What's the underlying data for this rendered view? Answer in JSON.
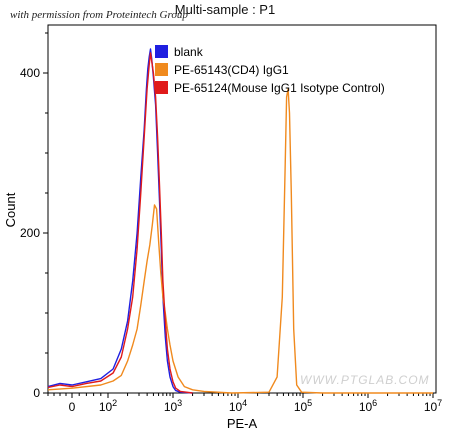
{
  "watermark_top": "with permission from Proteintech Group",
  "watermark_bottom": "WWW.PTGLAB.COM",
  "chart_data": {
    "type": "line",
    "title": "Multi-sample : P1",
    "xlabel": "PE-A",
    "ylabel": "Count",
    "x_scale": "biexponential",
    "xlim": [
      -100,
      10000000
    ],
    "ylim": [
      0,
      460
    ],
    "x_ticks": [
      {
        "value": 0,
        "label": "0"
      },
      {
        "value": 100,
        "label": "10^2"
      },
      {
        "value": 1000,
        "label": "10^3"
      },
      {
        "value": 10000,
        "label": "10^4"
      },
      {
        "value": 100000,
        "label": "10^5"
      },
      {
        "value": 1000000,
        "label": "10^6"
      },
      {
        "value": 10000000,
        "label": "10^7"
      }
    ],
    "y_ticks": [
      0,
      200,
      400
    ],
    "legend": {
      "position": "top-center"
    },
    "series": [
      {
        "name": "blank",
        "color": "#1f1fe0",
        "points": [
          [
            -80,
            8
          ],
          [
            -40,
            12
          ],
          [
            0,
            10
          ],
          [
            40,
            14
          ],
          [
            80,
            18
          ],
          [
            120,
            30
          ],
          [
            160,
            55
          ],
          [
            200,
            90
          ],
          [
            240,
            140
          ],
          [
            280,
            200
          ],
          [
            320,
            270
          ],
          [
            360,
            330
          ],
          [
            390,
            380
          ],
          [
            410,
            405
          ],
          [
            430,
            420
          ],
          [
            450,
            430
          ],
          [
            470,
            418
          ],
          [
            500,
            395
          ],
          [
            540,
            360
          ],
          [
            580,
            300
          ],
          [
            620,
            240
          ],
          [
            660,
            180
          ],
          [
            700,
            120
          ],
          [
            760,
            70
          ],
          [
            820,
            40
          ],
          [
            900,
            20
          ],
          [
            1000,
            8
          ],
          [
            1100,
            3
          ],
          [
            1300,
            1
          ],
          [
            2000,
            0
          ]
        ]
      },
      {
        "name": "PE-65143(CD4) IgG1",
        "color": "#f08a1e",
        "points": [
          [
            -80,
            4
          ],
          [
            0,
            6
          ],
          [
            80,
            10
          ],
          [
            120,
            15
          ],
          [
            160,
            22
          ],
          [
            200,
            40
          ],
          [
            240,
            60
          ],
          [
            280,
            80
          ],
          [
            320,
            110
          ],
          [
            360,
            140
          ],
          [
            400,
            165
          ],
          [
            440,
            185
          ],
          [
            480,
            210
          ],
          [
            520,
            235
          ],
          [
            560,
            230
          ],
          [
            600,
            190
          ],
          [
            650,
            150
          ],
          [
            700,
            120
          ],
          [
            760,
            100
          ],
          [
            820,
            80
          ],
          [
            900,
            60
          ],
          [
            1000,
            40
          ],
          [
            1200,
            20
          ],
          [
            1500,
            8
          ],
          [
            2000,
            4
          ],
          [
            3000,
            2
          ],
          [
            8000,
            0
          ],
          [
            30000,
            1
          ],
          [
            40000,
            20
          ],
          [
            48000,
            120
          ],
          [
            53000,
            280
          ],
          [
            56000,
            370
          ],
          [
            59000,
            380
          ],
          [
            62000,
            350
          ],
          [
            66000,
            250
          ],
          [
            72000,
            80
          ],
          [
            80000,
            10
          ],
          [
            95000,
            1
          ],
          [
            200000,
            0
          ],
          [
            10000000,
            0
          ]
        ]
      },
      {
        "name": "PE-65124(Mouse IgG1 Isotype Control)",
        "color": "#e01a1a",
        "points": [
          [
            -80,
            7
          ],
          [
            -40,
            10
          ],
          [
            0,
            8
          ],
          [
            40,
            12
          ],
          [
            80,
            15
          ],
          [
            120,
            25
          ],
          [
            160,
            45
          ],
          [
            200,
            80
          ],
          [
            240,
            120
          ],
          [
            280,
            180
          ],
          [
            320,
            250
          ],
          [
            360,
            320
          ],
          [
            400,
            380
          ],
          [
            430,
            410
          ],
          [
            450,
            425
          ],
          [
            470,
            415
          ],
          [
            500,
            400
          ],
          [
            540,
            370
          ],
          [
            580,
            320
          ],
          [
            620,
            260
          ],
          [
            660,
            200
          ],
          [
            700,
            140
          ],
          [
            760,
            90
          ],
          [
            820,
            55
          ],
          [
            900,
            30
          ],
          [
            1000,
            14
          ],
          [
            1100,
            6
          ],
          [
            1300,
            2
          ],
          [
            2000,
            0
          ]
        ]
      }
    ]
  }
}
